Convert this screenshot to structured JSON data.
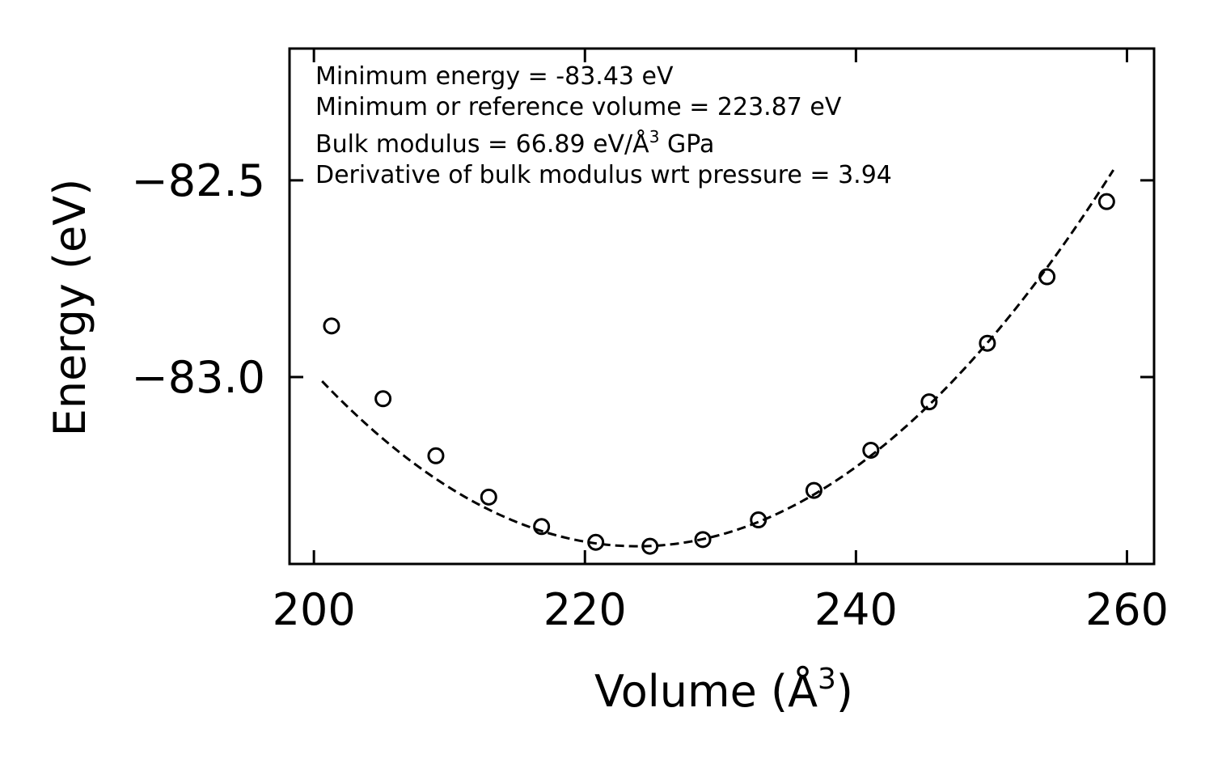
{
  "chart_data": {
    "type": "scatter",
    "xlabel": "Volume (Å",
    "xlabel_sup": "3",
    "xlabel_close": ")",
    "ylabel": "Energy (eV)",
    "xlim": [
      198.2,
      262.0
    ],
    "ylim": [
      -83.475,
      -82.165
    ],
    "xticks": [
      200,
      220,
      240,
      260
    ],
    "xtick_labels": [
      "200",
      "220",
      "240",
      "260"
    ],
    "yticks": [
      -82.5,
      -83.0
    ],
    "ytick_labels": [
      "−82.5",
      "−83.0"
    ],
    "points": {
      "x": [
        201.3,
        205.1,
        209.0,
        212.9,
        216.8,
        220.8,
        224.8,
        228.7,
        232.8,
        236.9,
        241.1,
        245.4,
        249.7,
        254.1,
        258.5
      ],
      "y": [
        -82.87,
        -83.055,
        -83.2,
        -83.305,
        -83.38,
        -83.42,
        -83.43,
        -83.413,
        -83.363,
        -83.288,
        -83.186,
        -83.063,
        -82.914,
        -82.745,
        -82.554
      ]
    },
    "fit": {
      "style": "dashed",
      "e0": -83.43,
      "v0": 223.87,
      "curvature": 0.000775,
      "v_start": 200.6,
      "v_end": 259.0
    },
    "annotations": [
      "Minimum energy = -83.43 eV",
      "Minimum or reference volume = 223.87 eV",
      "Bulk modulus = 66.89 eV/Å",
      "Derivative of bulk modulus wrt pressure = 3.94"
    ],
    "annotation_sup": "3",
    "annotation_tail": " GPa"
  }
}
